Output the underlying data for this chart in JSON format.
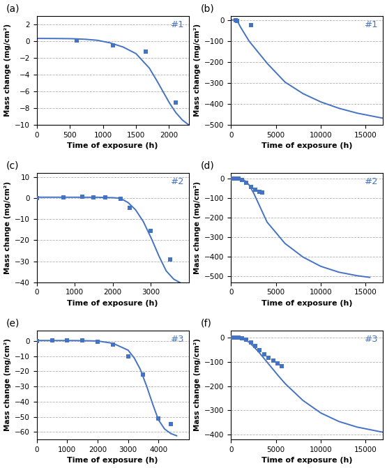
{
  "subplots": [
    {
      "label": "(a)",
      "tag": "#1",
      "scatter_x": [
        600,
        1150,
        1650,
        2100
      ],
      "scatter_y": [
        0.1,
        -0.5,
        -1.3,
        -7.3
      ],
      "curve_x": [
        0,
        100,
        300,
        500,
        700,
        900,
        1100,
        1300,
        1500,
        1700,
        1800,
        1900,
        2000,
        2100,
        2200,
        2300
      ],
      "curve_y": [
        0.3,
        0.3,
        0.29,
        0.28,
        0.22,
        0.1,
        -0.2,
        -0.7,
        -1.5,
        -3.2,
        -4.5,
        -5.9,
        -7.3,
        -8.5,
        -9.4,
        -10.0
      ],
      "xlim": [
        0,
        2300
      ],
      "xticks": [
        0,
        500,
        1000,
        1500,
        2000
      ],
      "ylim": [
        -10,
        3
      ],
      "yticks": [
        -10,
        -8,
        -6,
        -4,
        -2,
        0,
        2
      ],
      "row": 0,
      "col": 0
    },
    {
      "label": "(b)",
      "tag": "#1",
      "scatter_x": [
        500,
        700,
        2200
      ],
      "scatter_y": [
        0.0,
        -5.0,
        -25.0
      ],
      "curve_x": [
        0,
        500,
        700,
        1000,
        2000,
        4000,
        6000,
        8000,
        10000,
        12000,
        14000,
        16000,
        17000
      ],
      "curve_y": [
        0.0,
        0.0,
        -5.0,
        -30.0,
        -100.0,
        -205.0,
        -295.0,
        -350.0,
        -390.0,
        -420.0,
        -443.0,
        -460.0,
        -468.0
      ],
      "xlim": [
        0,
        17000
      ],
      "xticks": [
        0,
        5000,
        10000,
        15000
      ],
      "ylim": [
        -500,
        20
      ],
      "yticks": [
        -500,
        -400,
        -300,
        -200,
        -100,
        0
      ],
      "row": 0,
      "col": 1
    },
    {
      "label": "(c)",
      "tag": "#2",
      "scatter_x": [
        0,
        700,
        1200,
        1500,
        1800,
        2200,
        2450,
        3000,
        3500
      ],
      "scatter_y": [
        0.0,
        0.5,
        0.8,
        0.5,
        0.3,
        -0.2,
        -4.5,
        -15.5,
        -29.0
      ],
      "curve_x": [
        0,
        500,
        1000,
        1500,
        2000,
        2200,
        2400,
        2600,
        2800,
        3000,
        3200,
        3400,
        3600,
        3800
      ],
      "curve_y": [
        0.5,
        0.5,
        0.5,
        0.5,
        0.3,
        0.0,
        -2.0,
        -5.5,
        -11.0,
        -18.5,
        -27.0,
        -34.5,
        -38.5,
        -40.5
      ],
      "xlim": [
        0,
        4000
      ],
      "xticks": [
        0,
        1000,
        2000,
        3000
      ],
      "ylim": [
        -40,
        12
      ],
      "yticks": [
        -40,
        -30,
        -20,
        -10,
        0,
        10
      ],
      "row": 1,
      "col": 0
    },
    {
      "label": "(d)",
      "tag": "#2",
      "scatter_x": [
        200,
        500,
        800,
        1200,
        1700,
        2200,
        2700,
        3200,
        3500
      ],
      "scatter_y": [
        0.0,
        0.0,
        0.0,
        -5.0,
        -20.0,
        -40.0,
        -55.0,
        -65.0,
        -70.0
      ],
      "curve_x": [
        0,
        200,
        500,
        1000,
        1500,
        2000,
        2500,
        3000,
        4000,
        6000,
        8000,
        10000,
        12000,
        14000,
        15500
      ],
      "curve_y": [
        0.0,
        0.0,
        0.0,
        -1.0,
        -8.0,
        -30.0,
        -70.0,
        -120.0,
        -220.0,
        -330.0,
        -400.0,
        -448.0,
        -478.0,
        -496.0,
        -505.0
      ],
      "xlim": [
        0,
        17000
      ],
      "xticks": [
        0,
        5000,
        10000,
        15000
      ],
      "ylim": [
        -530,
        30
      ],
      "yticks": [
        -500,
        -400,
        -300,
        -200,
        -100,
        0
      ],
      "row": 1,
      "col": 1
    },
    {
      "label": "(e)",
      "tag": "#3",
      "scatter_x": [
        0,
        500,
        1000,
        1500,
        2000,
        2500,
        3000,
        3500,
        4000,
        4400
      ],
      "scatter_y": [
        0.0,
        0.3,
        0.3,
        0.2,
        -0.5,
        -2.5,
        -10.0,
        -22.0,
        -51.0,
        -55.0
      ],
      "curve_x": [
        0,
        500,
        1000,
        1500,
        2000,
        2500,
        3000,
        3200,
        3400,
        3600,
        3800,
        4000,
        4200,
        4400,
        4600
      ],
      "curve_y": [
        0.3,
        0.3,
        0.3,
        0.2,
        0.0,
        -1.5,
        -6.0,
        -11.0,
        -18.5,
        -29.0,
        -41.0,
        -52.0,
        -58.0,
        -61.0,
        -62.5
      ],
      "xlim": [
        0,
        5000
      ],
      "xticks": [
        0,
        1000,
        2000,
        3000,
        4000
      ],
      "ylim": [
        -65,
        7
      ],
      "yticks": [
        -60,
        -50,
        -40,
        -30,
        -20,
        -10,
        0
      ],
      "row": 2,
      "col": 0
    },
    {
      "label": "(f)",
      "tag": "#3",
      "scatter_x": [
        200,
        500,
        800,
        1200,
        1700,
        2200,
        2700,
        3200,
        3700,
        4200,
        4700,
        5200,
        5700
      ],
      "scatter_y": [
        0.0,
        0.0,
        0.0,
        -2.0,
        -8.0,
        -20.0,
        -35.0,
        -52.0,
        -68.0,
        -82.0,
        -95.0,
        -107.0,
        -118.0
      ],
      "curve_x": [
        0,
        200,
        500,
        1000,
        2000,
        3000,
        4000,
        5000,
        6000,
        8000,
        10000,
        12000,
        14000,
        16000,
        17000
      ],
      "curve_y": [
        0.0,
        0.0,
        0.0,
        -2.0,
        -18.0,
        -55.0,
        -100.0,
        -145.0,
        -188.0,
        -258.0,
        -310.0,
        -345.0,
        -368.0,
        -383.0,
        -390.0
      ],
      "xlim": [
        0,
        17000
      ],
      "xticks": [
        0,
        5000,
        10000,
        15000
      ],
      "ylim": [
        -420,
        30
      ],
      "yticks": [
        -400,
        -300,
        -200,
        -100,
        0
      ],
      "row": 2,
      "col": 1
    }
  ],
  "line_color": "#4472C4",
  "scatter_color": "#4472C4",
  "bg_color": "#ffffff",
  "grid_color": "#b0b0b0",
  "xlabel": "Time of exposure (h)",
  "ylabel": "Mass change (mg/cm²)"
}
